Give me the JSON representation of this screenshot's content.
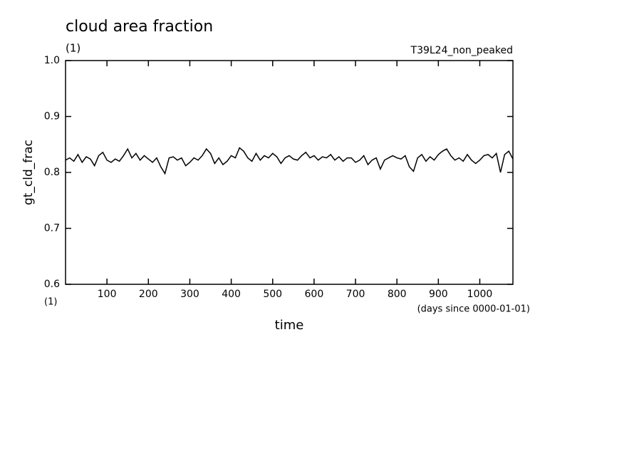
{
  "chart_data": {
    "type": "line",
    "title": "cloud area fraction",
    "unit_label": "(1)",
    "experiment": "T39L24_non_peaked",
    "y_label": "gt_cld_frac",
    "x_label": "time",
    "x_unit_label": "(1)",
    "x_units": "(days since 0000-01-01)",
    "xlim": [
      0,
      1080
    ],
    "ylim": [
      0.6,
      1
    ],
    "xticks": [
      100,
      200,
      300,
      400,
      500,
      600,
      700,
      800,
      900,
      1000
    ],
    "yticks": [
      0.6,
      0.7,
      0.8,
      0.9,
      {
        "value": 1,
        "label": "1.0"
      }
    ],
    "color": "#000000",
    "x": [
      0,
      10,
      20,
      30,
      40,
      50,
      60,
      70,
      80,
      90,
      100,
      110,
      120,
      130,
      140,
      150,
      160,
      170,
      180,
      190,
      200,
      210,
      220,
      230,
      240,
      250,
      260,
      270,
      280,
      290,
      300,
      310,
      320,
      330,
      340,
      350,
      360,
      370,
      380,
      390,
      400,
      410,
      420,
      430,
      440,
      450,
      460,
      470,
      480,
      490,
      500,
      510,
      520,
      530,
      540,
      550,
      560,
      570,
      580,
      590,
      600,
      610,
      620,
      630,
      640,
      650,
      660,
      670,
      680,
      690,
      700,
      710,
      720,
      730,
      740,
      750,
      760,
      770,
      780,
      790,
      800,
      810,
      820,
      830,
      840,
      850,
      860,
      870,
      880,
      890,
      900,
      910,
      920,
      930,
      940,
      950,
      960,
      970,
      980,
      990,
      1000,
      1010,
      1020,
      1030,
      1040,
      1050,
      1060,
      1070,
      1080
    ],
    "values": [
      0.822,
      0.826,
      0.82,
      0.832,
      0.818,
      0.828,
      0.824,
      0.812,
      0.83,
      0.836,
      0.822,
      0.818,
      0.824,
      0.82,
      0.83,
      0.842,
      0.826,
      0.834,
      0.822,
      0.83,
      0.824,
      0.818,
      0.826,
      0.81,
      0.798,
      0.826,
      0.828,
      0.822,
      0.826,
      0.812,
      0.818,
      0.826,
      0.822,
      0.83,
      0.842,
      0.834,
      0.816,
      0.826,
      0.814,
      0.82,
      0.83,
      0.826,
      0.844,
      0.838,
      0.826,
      0.82,
      0.834,
      0.822,
      0.83,
      0.826,
      0.834,
      0.828,
      0.816,
      0.826,
      0.83,
      0.824,
      0.822,
      0.83,
      0.836,
      0.826,
      0.83,
      0.822,
      0.828,
      0.826,
      0.832,
      0.822,
      0.828,
      0.82,
      0.826,
      0.826,
      0.818,
      0.822,
      0.83,
      0.814,
      0.822,
      0.826,
      0.806,
      0.822,
      0.826,
      0.83,
      0.826,
      0.824,
      0.83,
      0.81,
      0.802,
      0.826,
      0.832,
      0.82,
      0.828,
      0.822,
      0.832,
      0.838,
      0.842,
      0.83,
      0.822,
      0.826,
      0.82,
      0.832,
      0.822,
      0.816,
      0.822,
      0.83,
      0.832,
      0.826,
      0.834,
      0.8,
      0.832,
      0.838,
      0.824
    ]
  }
}
